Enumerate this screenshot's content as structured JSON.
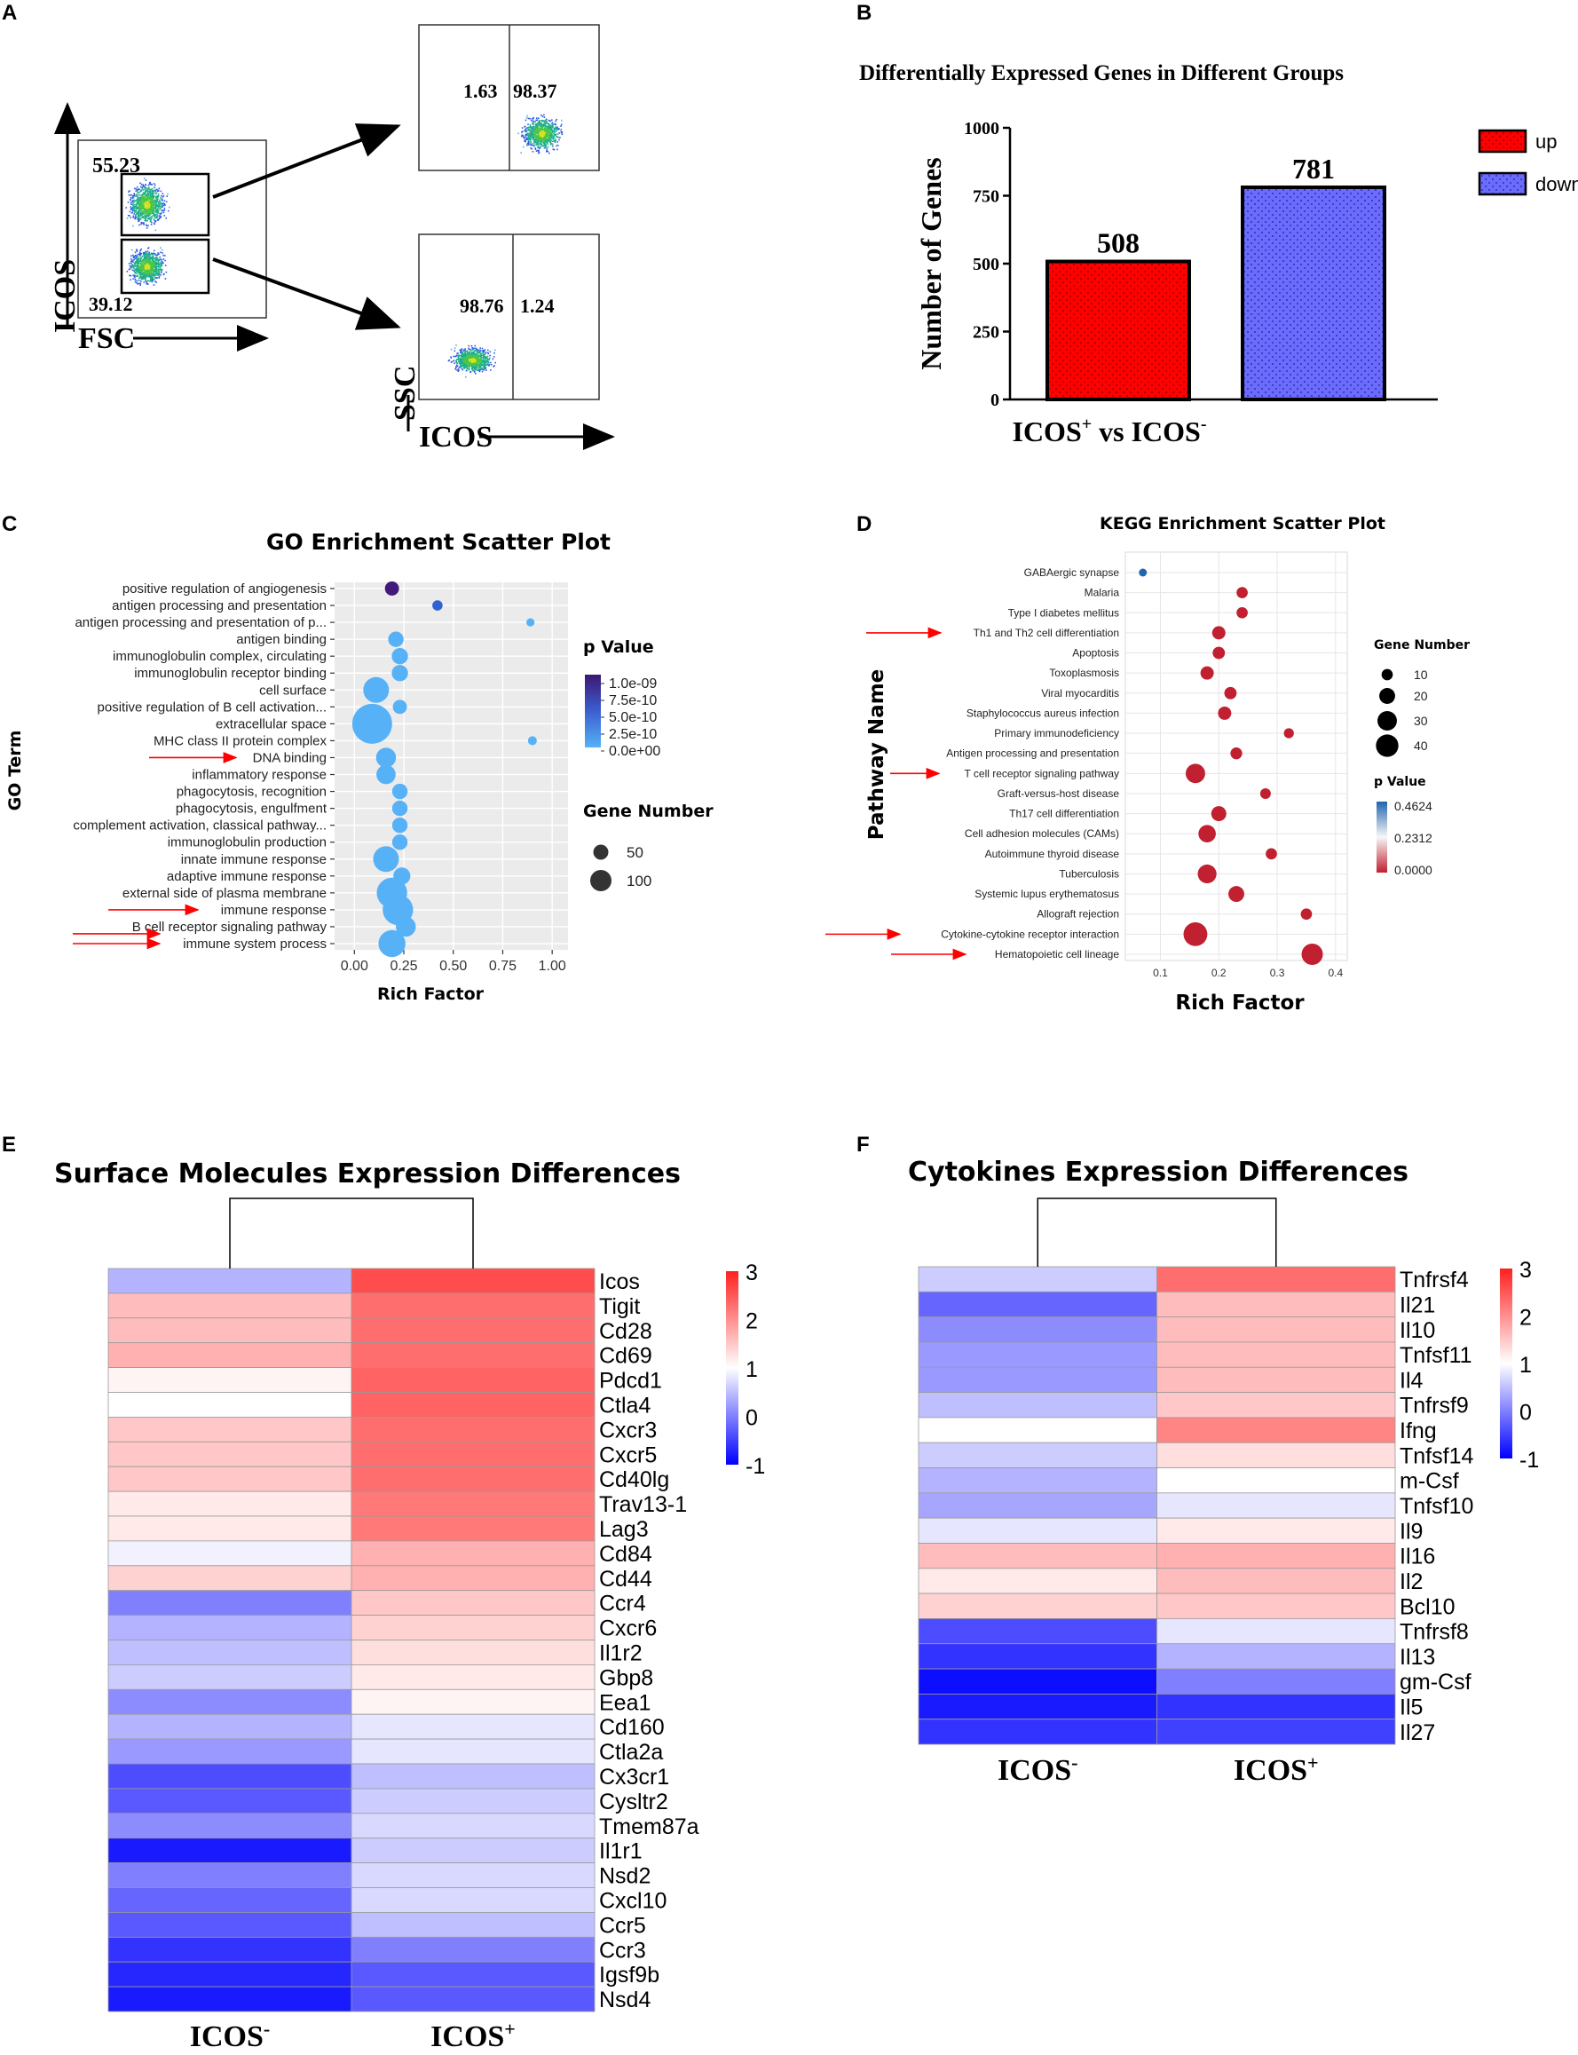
{
  "panel_labels": {
    "A": "A",
    "B": "B",
    "C": "C",
    "D": "D",
    "E": "E",
    "F": "F"
  },
  "flow": {
    "main": {
      "yaxis": "ICOS",
      "xaxis": "FSC",
      "upper_gate_value": "55.23",
      "lower_gate_value": "39.12"
    },
    "top": {
      "left_value": "1.63",
      "right_value": "98.37"
    },
    "bottom": {
      "left_value": "98.76",
      "right_value": "1.24",
      "yaxis": "SSC",
      "xaxis": "ICOS"
    }
  },
  "chart_data": [
    {
      "id": "B",
      "type": "bar",
      "title": "Differentially Expressed Genes in Different Groups",
      "ylabel": "Number of Genes",
      "xlabel": "ICOS",
      "xlabel_parts": {
        "a": "ICOS",
        "sup1": "+",
        "mid": " vs ICOS",
        "sup2": "-"
      },
      "categories": [
        "up",
        "down"
      ],
      "values": [
        508,
        781
      ],
      "value_labels": [
        "508",
        "781"
      ],
      "colors": [
        "#ff0000",
        "#6b6bff"
      ],
      "ylim": [
        0,
        1000
      ],
      "yticks": [
        "0",
        "250",
        "500",
        "750",
        "1000"
      ],
      "legend": [
        "up",
        "down"
      ]
    },
    {
      "id": "C",
      "type": "scatter",
      "title": "GO Enrichment Scatter Plot",
      "xlabel": "Rich Factor",
      "ylabel": "GO Term",
      "xlim": [
        -0.1,
        1.08
      ],
      "xticks": [
        "0.00",
        "0.25",
        "0.50",
        "0.75",
        "1.00"
      ],
      "terms": [
        "positive regulation of angiogenesis",
        "antigen processing and presentation",
        "antigen processing and presentation of p...",
        "antigen binding",
        "immunoglobulin complex, circulating",
        "immunoglobulin receptor binding",
        "cell surface",
        "positive regulation of B cell activation...",
        "extracellular space",
        "MHC class II protein complex",
        "DNA binding",
        "inflammatory response",
        "phagocytosis, recognition",
        "phagocytosis, engulfment",
        "complement activation, classical pathway...",
        "immunoglobulin production",
        "innate immune response",
        "adaptive immune response",
        "external side of plasma membrane",
        "immune response",
        "B cell receptor signaling pathway",
        "immune system process"
      ],
      "rich_factor": [
        0.19,
        0.42,
        0.89,
        0.21,
        0.23,
        0.23,
        0.11,
        0.23,
        0.09,
        0.9,
        0.16,
        0.16,
        0.23,
        0.23,
        0.23,
        0.23,
        0.16,
        0.24,
        0.19,
        0.22,
        0.26,
        0.19
      ],
      "gene_number": [
        15,
        8,
        5,
        18,
        20,
        20,
        50,
        15,
        120,
        6,
        30,
        28,
        18,
        18,
        18,
        18,
        50,
        22,
        70,
        70,
        30,
        55
      ],
      "p_value": [
        1e-09,
        1.5e-10,
        0,
        0,
        0,
        0,
        0,
        0,
        0,
        0,
        0,
        0,
        0,
        0,
        0,
        0,
        0,
        0,
        0,
        0,
        0,
        0
      ],
      "arrows": [
        "DNA binding",
        "immune response",
        "B cell receptor signaling pathway",
        "immune system process"
      ],
      "legend_p": {
        "title": "p Value",
        "ticks": [
          "1.0e-09",
          "7.5e-10",
          "5.0e-10",
          "2.5e-10",
          "0.0e+00"
        ]
      },
      "legend_size": {
        "title": "Gene Number",
        "ticks": [
          "50",
          "100"
        ]
      }
    },
    {
      "id": "D",
      "type": "scatter",
      "title": "KEGG Enrichment Scatter Plot",
      "xlabel": "Rich Factor",
      "ylabel": "Pathway Name",
      "xlim": [
        0.04,
        0.42
      ],
      "xticks": [
        "0.1",
        "0.2",
        "0.3",
        "0.4"
      ],
      "terms": [
        "GABAergic synapse",
        "Malaria",
        "Type I diabetes mellitus",
        "Th1 and Th2 cell differentiation",
        "Apoptosis",
        "Toxoplasmosis",
        "Viral myocarditis",
        "Staphylococcus aureus infection",
        "Primary immunodeficiency",
        "Antigen processing and presentation",
        "T cell receptor signaling pathway",
        "Graft-versus-host disease",
        "Th17 cell differentiation",
        "Cell adhesion molecules (CAMs)",
        "Autoimmune thyroid disease",
        "Tuberculosis",
        "Systemic lupus erythematosus",
        "Allograft rejection",
        "Cytokine-cytokine receptor interaction",
        "Hematopoietic cell lineage"
      ],
      "rich_factor": [
        0.07,
        0.24,
        0.24,
        0.2,
        0.2,
        0.18,
        0.22,
        0.21,
        0.32,
        0.23,
        0.16,
        0.28,
        0.2,
        0.18,
        0.29,
        0.18,
        0.23,
        0.35,
        0.16,
        0.36
      ],
      "gene_number": [
        5,
        10,
        10,
        14,
        12,
        14,
        12,
        14,
        8,
        11,
        30,
        9,
        18,
        24,
        10,
        28,
        20,
        10,
        45,
        36
      ],
      "p_value": [
        0.4624,
        0,
        0,
        0,
        0,
        0,
        0,
        0,
        0,
        0,
        0,
        0,
        0,
        0,
        0,
        0,
        0,
        0,
        0,
        0
      ],
      "arrows": [
        "Th1 and Th2 cell differentiation",
        "T cell receptor signaling pathway",
        "Cytokine-cytokine receptor interaction",
        "Hematopoietic cell lineage"
      ],
      "legend_size": {
        "title": "Gene Number",
        "ticks": [
          "10",
          "20",
          "30",
          "40"
        ]
      },
      "legend_p": {
        "title": "p Value",
        "ticks": [
          "0.4624",
          "0.2312",
          "0.0000"
        ]
      }
    },
    {
      "id": "E",
      "type": "heatmap",
      "title": "Surface Molecules Expression Differences",
      "columns": [
        "ICOS-",
        "ICOS+"
      ],
      "column_labels": [
        {
          "base": "ICOS",
          "sup": "-"
        },
        {
          "base": "ICOS",
          "sup": "+"
        }
      ],
      "rows": [
        "Icos",
        "Tigit",
        "Cd28",
        "Cd69",
        "Pdcd1",
        "Ctla4",
        "Cxcr3",
        "Cxcr5",
        "Cd40lg",
        "Trav13-1",
        "Lag3",
        "Cd84",
        "Cd44",
        "Ccr4",
        "Cxcr6",
        "Il1r2",
        "Gbp8",
        "Eea1",
        "Cd160",
        "Ctla2a",
        "Cx3cr1",
        "Cysltr2",
        "Tmem87a",
        "Il1r1",
        "Nsd2",
        "Cxcl10",
        "Ccr5",
        "Ccr3",
        "Igsf9b",
        "Nsd4"
      ],
      "values": [
        [
          0.4,
          2.6
        ],
        [
          1.6,
          2.3
        ],
        [
          1.6,
          2.3
        ],
        [
          1.7,
          2.3
        ],
        [
          1.1,
          2.4
        ],
        [
          1.0,
          2.4
        ],
        [
          1.5,
          2.3
        ],
        [
          1.5,
          2.3
        ],
        [
          1.5,
          2.3
        ],
        [
          1.2,
          2.2
        ],
        [
          1.2,
          2.2
        ],
        [
          0.9,
          1.7
        ],
        [
          1.4,
          1.7
        ],
        [
          0.0,
          1.5
        ],
        [
          0.4,
          1.4
        ],
        [
          0.5,
          1.3
        ],
        [
          0.6,
          1.2
        ],
        [
          0.1,
          1.1
        ],
        [
          0.4,
          0.8
        ],
        [
          0.2,
          0.8
        ],
        [
          -0.4,
          0.5
        ],
        [
          -0.3,
          0.6
        ],
        [
          0.1,
          0.7
        ],
        [
          -0.8,
          0.6
        ],
        [
          0.0,
          0.7
        ],
        [
          -0.2,
          0.7
        ],
        [
          -0.3,
          0.5
        ],
        [
          -0.6,
          0.0
        ],
        [
          -0.7,
          -0.3
        ],
        [
          -0.8,
          -0.3
        ]
      ],
      "scale": {
        "min": -1,
        "mid": 1,
        "max": 3,
        "ticks": [
          "3",
          "2",
          "1",
          "0",
          "-1"
        ]
      }
    },
    {
      "id": "F",
      "type": "heatmap",
      "title": "Cytokines Expression Differences",
      "columns": [
        "ICOS-",
        "ICOS+"
      ],
      "column_labels": [
        {
          "base": "ICOS",
          "sup": "-"
        },
        {
          "base": "ICOS",
          "sup": "+"
        }
      ],
      "rows": [
        "Tnfrsf4",
        "Il21",
        "Il10",
        "Tnfsf11",
        "Il4",
        "Tnfrsf9",
        "Ifng",
        "Tnfsf14",
        "m-Csf",
        "Tnfsf10",
        "Il9",
        "Il16",
        "Il2",
        "Bcl10",
        "Tnfrsf8",
        "Il13",
        "gm-Csf",
        "Il5",
        "Il27"
      ],
      "values": [
        [
          0.6,
          2.3
        ],
        [
          -0.2,
          1.6
        ],
        [
          0.1,
          1.6
        ],
        [
          0.2,
          1.6
        ],
        [
          0.2,
          1.6
        ],
        [
          0.5,
          1.5
        ],
        [
          1.0,
          2.1
        ],
        [
          0.6,
          1.3
        ],
        [
          0.4,
          1.0
        ],
        [
          0.3,
          0.8
        ],
        [
          0.8,
          1.2
        ],
        [
          1.6,
          1.7
        ],
        [
          1.2,
          1.6
        ],
        [
          1.4,
          1.5
        ],
        [
          -0.4,
          0.8
        ],
        [
          -0.6,
          0.4
        ],
        [
          -0.9,
          0.0
        ],
        [
          -0.8,
          -0.6
        ],
        [
          -0.6,
          -0.5
        ]
      ],
      "scale": {
        "min": -1,
        "mid": 1,
        "max": 3,
        "ticks": [
          "3",
          "2",
          "1",
          "0",
          "-1"
        ]
      }
    }
  ]
}
